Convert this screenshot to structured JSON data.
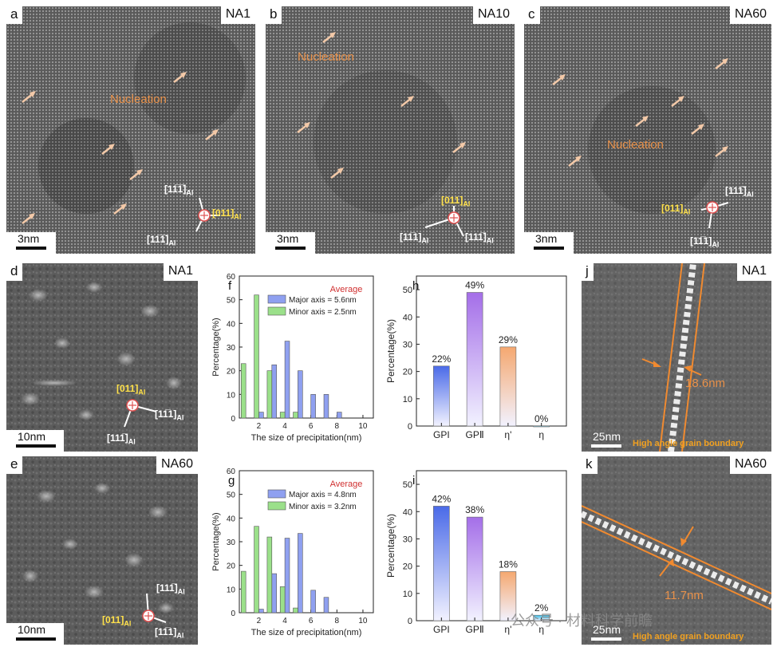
{
  "tem": {
    "a": {
      "letter": "a",
      "sample": "NA1",
      "scale": "3nm",
      "nucleation": "Nucleation",
      "dir1": "[11̅1̅]",
      "dir2": "[011]",
      "dir3": "[11̅1̅]",
      "sub": "Al"
    },
    "b": {
      "letter": "b",
      "sample": "NA10",
      "scale": "3nm",
      "nucleation": "Nucleation",
      "dir1": "[011]",
      "dir2": "[11̅1]",
      "dir3": "[111̅]",
      "sub": "Al"
    },
    "c": {
      "letter": "c",
      "sample": "NA60",
      "scale": "3nm",
      "nucleation": "Nucleation",
      "dir1": "[111̅]",
      "dir2": "[011]",
      "dir3": "[11̅1]",
      "sub": "Al"
    },
    "d": {
      "letter": "d",
      "sample": "NA1",
      "scale": "10nm",
      "dir1": "[011]",
      "dir2": "[11̅1]",
      "dir3": "[111̅]",
      "sub": "Al"
    },
    "e": {
      "letter": "e",
      "sample": "NA60",
      "scale": "10nm",
      "dir1": "[111̅]",
      "dir2": "[011]",
      "dir3": "[11̅1]",
      "sub": "Al"
    },
    "j": {
      "letter": "j",
      "sample": "NA1",
      "scale": "25nm",
      "width": "18.6nm",
      "boundary": "High angle grain boundary"
    },
    "k": {
      "letter": "k",
      "sample": "NA60",
      "scale": "25nm",
      "width": "11.7nm",
      "boundary": "High angle grain boundary"
    }
  },
  "chart_data": [
    {
      "id": "f",
      "type": "bar",
      "xlabel": "The size of precipitation(nm)",
      "ylabel": "Percentage(%)",
      "xlim": [
        0.5,
        10.8
      ],
      "ylim": [
        0,
        60
      ],
      "xticks": [
        2,
        4,
        6,
        8,
        10
      ],
      "yticks": [
        0,
        10,
        20,
        30,
        40,
        50,
        60
      ],
      "legend_title": "Average",
      "legend_placement": "top-right",
      "series": [
        {
          "name": "Major axis = 5.6nm",
          "color": "#8fa0f0",
          "x": [
            2,
            3,
            4,
            5,
            6,
            7,
            8
          ],
          "values": [
            2.5,
            22.5,
            32.5,
            20,
            10,
            10,
            2.5
          ]
        },
        {
          "name": "Minor axis = 2.5nm",
          "color": "#9be08a",
          "x": [
            1,
            2,
            3,
            4,
            5
          ],
          "values": [
            23,
            52,
            20,
            2.5,
            2.5
          ]
        }
      ]
    },
    {
      "id": "g",
      "type": "bar",
      "xlabel": "The size of precipitation(nm)",
      "ylabel": "Percentage(%)",
      "xlim": [
        0.5,
        10.8
      ],
      "ylim": [
        0,
        60
      ],
      "xticks": [
        2,
        4,
        6,
        8,
        10
      ],
      "yticks": [
        0,
        10,
        20,
        30,
        40,
        50,
        60
      ],
      "legend_title": "Average",
      "legend_placement": "top-right",
      "series": [
        {
          "name": "Major axis = 4.8nm",
          "color": "#8fa0f0",
          "x": [
            2,
            3,
            4,
            5,
            6,
            7
          ],
          "values": [
            1.5,
            16.5,
            31.5,
            33.5,
            9.5,
            6.5
          ]
        },
        {
          "name": "Minor axis = 3.2nm",
          "color": "#9be08a",
          "x": [
            1,
            2,
            3,
            4,
            5
          ],
          "values": [
            17.5,
            36.5,
            32,
            11,
            2
          ]
        }
      ]
    },
    {
      "id": "h",
      "type": "bar",
      "ylabel": "Percentage(%)",
      "ylim": [
        0,
        55
      ],
      "yticks": [
        0,
        10,
        20,
        30,
        40,
        50
      ],
      "categories": [
        "GPI",
        "GPⅡ",
        "η'",
        "η"
      ],
      "values": [
        22,
        49,
        29,
        0
      ],
      "labels": [
        "22%",
        "49%",
        "29%",
        "0%"
      ],
      "colors": [
        "#4a6ae8",
        "#a46ee8",
        "#f5a870",
        "#35bde8"
      ]
    },
    {
      "id": "i",
      "type": "bar",
      "ylabel": "Percentage(%)",
      "ylim": [
        0,
        55
      ],
      "yticks": [
        0,
        10,
        20,
        30,
        40,
        50
      ],
      "categories": [
        "GPI",
        "GPⅡ",
        "η'",
        "η"
      ],
      "values": [
        42,
        38,
        18,
        2
      ],
      "labels": [
        "42%",
        "38%",
        "18%",
        "2%"
      ],
      "colors": [
        "#4a6ae8",
        "#a46ee8",
        "#f5a870",
        "#35bde8"
      ]
    }
  ],
  "watermark": "公众号 · 材料科学前瞻"
}
